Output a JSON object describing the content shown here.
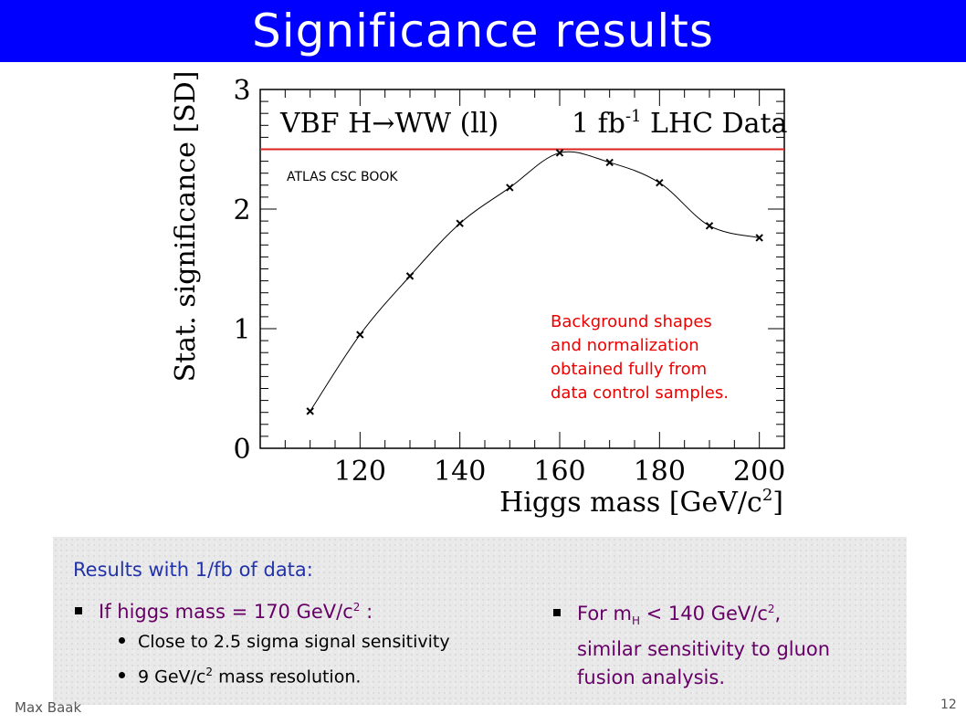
{
  "slide": {
    "title": "Significance results",
    "author": "Max Baak",
    "page_number": "12"
  },
  "chart_data": {
    "type": "line",
    "title_left": "VBF H→WW (ll)",
    "title_right_pre": "1 fb",
    "title_right_sup": "-1",
    "title_right_post": " LHC Data",
    "watermark": "ATLAS CSC BOOK",
    "xlabel_pre": "Higgs mass [GeV/c",
    "xlabel_sup": "2",
    "xlabel_post": "]",
    "ylabel": "Stat. significance [SD]",
    "x": [
      110,
      120,
      130,
      140,
      150,
      160,
      170,
      180,
      190,
      200
    ],
    "values": [
      0.31,
      0.95,
      1.44,
      1.88,
      2.18,
      2.47,
      2.39,
      2.22,
      1.86,
      1.76
    ],
    "xlim": [
      100,
      205
    ],
    "ylim": [
      0,
      3
    ],
    "xticks": [
      "120",
      "140",
      "160",
      "180",
      "200"
    ],
    "yticks": [
      "0",
      "1",
      "2",
      "3"
    ],
    "reference_line_y": 2.5,
    "annotation": [
      "Background shapes",
      "and normalization",
      "obtained fully from",
      "data control samples."
    ],
    "colors": {
      "reference_line": "#dd2222",
      "annotation": "#ee0000",
      "curve": "#000000"
    }
  },
  "notes": {
    "heading": "Results with 1/fb of data:",
    "left_bullet_pre": "If higgs mass = 170 GeV/c",
    "left_bullet_sup": "2",
    "left_bullet_post": " :",
    "sub1": "Close to 2.5 sigma signal sensitivity",
    "sub2_pre": "9 GeV/c",
    "sub2_sup": "2",
    "sub2_post": " mass resolution.",
    "right_pre": "For m",
    "right_sub": "H",
    "right_mid": " < 140 GeV/c",
    "right_sup": "2",
    "right_post": ",",
    "right_line2": "similar sensitivity to gluon",
    "right_line3": "fusion analysis."
  }
}
